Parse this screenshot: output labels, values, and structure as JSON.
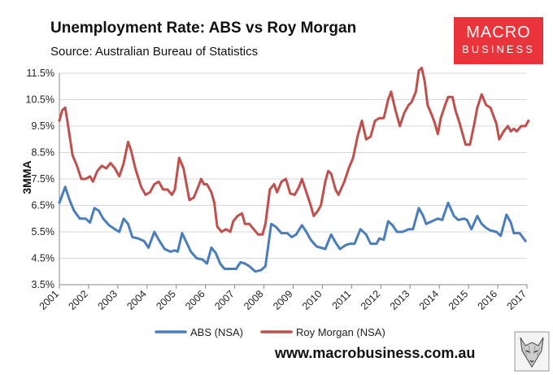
{
  "chart_data": {
    "type": "line",
    "title": "Unemployment Rate: ABS vs Roy Morgan",
    "subtitle": "Source: Australian Bureau of Statistics",
    "ylabel": "3MMA",
    "xlabel": "",
    "ylim": [
      3.5,
      11.5
    ],
    "xlim": [
      2001,
      2017
    ],
    "yticks": [
      3.5,
      4.5,
      5.5,
      6.5,
      7.5,
      8.5,
      9.5,
      10.5,
      11.5
    ],
    "ytick_labels": [
      "3.5%",
      "4.5%",
      "5.5%",
      "6.5%",
      "7.5%",
      "8.5%",
      "9.5%",
      "10.5%",
      "11.5%"
    ],
    "xticks": [
      2001,
      2002,
      2003,
      2004,
      2005,
      2006,
      2007,
      2008,
      2009,
      2010,
      2011,
      2012,
      2013,
      2014,
      2015,
      2016,
      2017
    ],
    "xtick_labels": [
      "2001",
      "2002",
      "2003",
      "2004",
      "2005",
      "2006",
      "2007",
      "2008",
      "2009",
      "2010",
      "2011",
      "2012",
      "2013",
      "2014",
      "2015",
      "2016",
      "2017"
    ],
    "legend_position": "bottom",
    "series": [
      {
        "name": "ABS (NSA)",
        "color": "#4a7ebb",
        "points": [
          [
            2001.0,
            6.6
          ],
          [
            2001.2,
            7.2
          ],
          [
            2001.35,
            6.7
          ],
          [
            2001.5,
            6.3
          ],
          [
            2001.7,
            6.0
          ],
          [
            2001.9,
            6.0
          ],
          [
            2002.05,
            5.85
          ],
          [
            2002.2,
            6.4
          ],
          [
            2002.35,
            6.3
          ],
          [
            2002.5,
            6.0
          ],
          [
            2002.7,
            5.75
          ],
          [
            2002.9,
            5.6
          ],
          [
            2003.05,
            5.5
          ],
          [
            2003.2,
            6.0
          ],
          [
            2003.35,
            5.8
          ],
          [
            2003.5,
            5.3
          ],
          [
            2003.7,
            5.25
          ],
          [
            2003.9,
            5.15
          ],
          [
            2004.05,
            4.9
          ],
          [
            2004.25,
            5.5
          ],
          [
            2004.4,
            5.2
          ],
          [
            2004.6,
            4.85
          ],
          [
            2004.8,
            4.75
          ],
          [
            2004.95,
            4.8
          ],
          [
            2005.05,
            4.75
          ],
          [
            2005.2,
            5.45
          ],
          [
            2005.35,
            5.1
          ],
          [
            2005.5,
            4.75
          ],
          [
            2005.7,
            4.5
          ],
          [
            2005.9,
            4.45
          ],
          [
            2006.05,
            4.3
          ],
          [
            2006.2,
            4.9
          ],
          [
            2006.35,
            4.7
          ],
          [
            2006.5,
            4.3
          ],
          [
            2006.65,
            4.1
          ],
          [
            2006.85,
            4.1
          ],
          [
            2007.05,
            4.1
          ],
          [
            2007.2,
            4.35
          ],
          [
            2007.35,
            4.3
          ],
          [
            2007.5,
            4.2
          ],
          [
            2007.7,
            4.0
          ],
          [
            2007.9,
            4.05
          ],
          [
            2008.05,
            4.2
          ],
          [
            2008.25,
            5.8
          ],
          [
            2008.4,
            5.7
          ],
          [
            2008.6,
            5.45
          ],
          [
            2008.8,
            5.45
          ],
          [
            2008.95,
            5.3
          ],
          [
            2009.1,
            5.4
          ],
          [
            2009.3,
            5.75
          ],
          [
            2009.45,
            5.5
          ],
          [
            2009.6,
            5.2
          ],
          [
            2009.8,
            4.95
          ],
          [
            2009.95,
            4.9
          ],
          [
            2010.1,
            4.85
          ],
          [
            2010.3,
            5.4
          ],
          [
            2010.45,
            5.1
          ],
          [
            2010.6,
            4.85
          ],
          [
            2010.8,
            5.0
          ],
          [
            2010.95,
            5.05
          ],
          [
            2011.1,
            5.05
          ],
          [
            2011.3,
            5.6
          ],
          [
            2011.5,
            5.4
          ],
          [
            2011.65,
            5.05
          ],
          [
            2011.85,
            5.05
          ],
          [
            2011.95,
            5.25
          ],
          [
            2012.1,
            5.2
          ],
          [
            2012.25,
            5.9
          ],
          [
            2012.4,
            5.75
          ],
          [
            2012.55,
            5.5
          ],
          [
            2012.75,
            5.5
          ],
          [
            2012.95,
            5.6
          ],
          [
            2013.1,
            5.6
          ],
          [
            2013.3,
            6.4
          ],
          [
            2013.45,
            6.1
          ],
          [
            2013.55,
            5.8
          ],
          [
            2013.75,
            5.9
          ],
          [
            2013.95,
            6.0
          ],
          [
            2014.1,
            5.95
          ],
          [
            2014.3,
            6.6
          ],
          [
            2014.5,
            6.1
          ],
          [
            2014.65,
            5.95
          ],
          [
            2014.85,
            6.0
          ],
          [
            2014.95,
            5.95
          ],
          [
            2015.1,
            5.6
          ],
          [
            2015.3,
            6.1
          ],
          [
            2015.45,
            5.8
          ],
          [
            2015.6,
            5.65
          ],
          [
            2015.75,
            5.55
          ],
          [
            2015.95,
            5.5
          ],
          [
            2016.1,
            5.35
          ],
          [
            2016.3,
            6.15
          ],
          [
            2016.45,
            5.85
          ],
          [
            2016.55,
            5.45
          ],
          [
            2016.75,
            5.45
          ],
          [
            2016.95,
            5.15
          ]
        ]
      },
      {
        "name": "Roy Morgan (NSA)",
        "color": "#c0504d",
        "points": [
          [
            2001.0,
            9.7
          ],
          [
            2001.1,
            10.1
          ],
          [
            2001.2,
            10.2
          ],
          [
            2001.3,
            9.5
          ],
          [
            2001.45,
            8.4
          ],
          [
            2001.6,
            8.0
          ],
          [
            2001.75,
            7.5
          ],
          [
            2001.9,
            7.5
          ],
          [
            2002.05,
            7.6
          ],
          [
            2002.15,
            7.4
          ],
          [
            2002.3,
            7.8
          ],
          [
            2002.45,
            8.0
          ],
          [
            2002.6,
            7.9
          ],
          [
            2002.75,
            8.1
          ],
          [
            2002.9,
            7.9
          ],
          [
            2003.05,
            7.6
          ],
          [
            2003.2,
            8.1
          ],
          [
            2003.35,
            8.9
          ],
          [
            2003.45,
            8.6
          ],
          [
            2003.6,
            7.9
          ],
          [
            2003.8,
            7.2
          ],
          [
            2003.95,
            6.9
          ],
          [
            2004.1,
            7.0
          ],
          [
            2004.25,
            7.3
          ],
          [
            2004.4,
            7.4
          ],
          [
            2004.55,
            7.1
          ],
          [
            2004.7,
            7.1
          ],
          [
            2004.85,
            6.9
          ],
          [
            2004.95,
            7.1
          ],
          [
            2005.1,
            8.3
          ],
          [
            2005.25,
            7.9
          ],
          [
            2005.45,
            6.7
          ],
          [
            2005.6,
            6.8
          ],
          [
            2005.75,
            7.2
          ],
          [
            2005.85,
            7.5
          ],
          [
            2005.95,
            7.3
          ],
          [
            2006.05,
            7.3
          ],
          [
            2006.2,
            7.0
          ],
          [
            2006.3,
            6.6
          ],
          [
            2006.4,
            5.7
          ],
          [
            2006.55,
            5.5
          ],
          [
            2006.7,
            5.6
          ],
          [
            2006.85,
            5.5
          ],
          [
            2006.95,
            5.9
          ],
          [
            2007.1,
            6.1
          ],
          [
            2007.25,
            6.2
          ],
          [
            2007.35,
            5.8
          ],
          [
            2007.5,
            5.8
          ],
          [
            2007.65,
            5.6
          ],
          [
            2007.8,
            5.4
          ],
          [
            2007.95,
            5.4
          ],
          [
            2008.05,
            5.8
          ],
          [
            2008.2,
            7.1
          ],
          [
            2008.35,
            7.3
          ],
          [
            2008.45,
            7.0
          ],
          [
            2008.6,
            7.4
          ],
          [
            2008.75,
            7.5
          ],
          [
            2008.9,
            6.95
          ],
          [
            2009.05,
            6.9
          ],
          [
            2009.2,
            7.2
          ],
          [
            2009.3,
            7.5
          ],
          [
            2009.45,
            7.0
          ],
          [
            2009.6,
            6.5
          ],
          [
            2009.7,
            6.1
          ],
          [
            2009.85,
            6.3
          ],
          [
            2009.95,
            6.5
          ],
          [
            2010.1,
            7.4
          ],
          [
            2010.2,
            7.8
          ],
          [
            2010.3,
            7.7
          ],
          [
            2010.45,
            7.1
          ],
          [
            2010.55,
            6.9
          ],
          [
            2010.75,
            7.4
          ],
          [
            2010.9,
            7.9
          ],
          [
            2011.05,
            8.3
          ],
          [
            2011.2,
            9.1
          ],
          [
            2011.35,
            9.7
          ],
          [
            2011.5,
            9.0
          ],
          [
            2011.65,
            9.1
          ],
          [
            2011.8,
            9.7
          ],
          [
            2011.95,
            9.8
          ],
          [
            2012.1,
            9.8
          ],
          [
            2012.25,
            10.5
          ],
          [
            2012.35,
            10.8
          ],
          [
            2012.5,
            10.1
          ],
          [
            2012.65,
            9.5
          ],
          [
            2012.8,
            10.0
          ],
          [
            2012.95,
            10.3
          ],
          [
            2013.05,
            10.4
          ],
          [
            2013.2,
            10.8
          ],
          [
            2013.3,
            11.6
          ],
          [
            2013.4,
            11.7
          ],
          [
            2013.5,
            11.2
          ],
          [
            2013.6,
            10.3
          ],
          [
            2013.75,
            9.9
          ],
          [
            2013.85,
            9.6
          ],
          [
            2013.95,
            9.2
          ],
          [
            2014.05,
            9.8
          ],
          [
            2014.2,
            10.3
          ],
          [
            2014.3,
            10.6
          ],
          [
            2014.45,
            10.6
          ],
          [
            2014.55,
            10.1
          ],
          [
            2014.7,
            9.6
          ],
          [
            2014.8,
            9.2
          ],
          [
            2014.9,
            8.8
          ],
          [
            2015.05,
            8.8
          ],
          [
            2015.2,
            9.6
          ],
          [
            2015.3,
            10.2
          ],
          [
            2015.45,
            10.7
          ],
          [
            2015.6,
            10.3
          ],
          [
            2015.75,
            10.2
          ],
          [
            2015.95,
            9.6
          ],
          [
            2016.05,
            9.0
          ],
          [
            2016.2,
            9.3
          ],
          [
            2016.35,
            9.5
          ],
          [
            2016.45,
            9.3
          ],
          [
            2016.55,
            9.4
          ],
          [
            2016.65,
            9.3
          ],
          [
            2016.8,
            9.5
          ],
          [
            2016.95,
            9.5
          ],
          [
            2017.05,
            9.7
          ]
        ]
      }
    ]
  },
  "branding": {
    "logo_top": "MACRO",
    "logo_bottom": "BUSINESS",
    "logo_color": "#e8343a",
    "website": "www.macrobusiness.com.au",
    "mascot": "wolf-illustration"
  }
}
